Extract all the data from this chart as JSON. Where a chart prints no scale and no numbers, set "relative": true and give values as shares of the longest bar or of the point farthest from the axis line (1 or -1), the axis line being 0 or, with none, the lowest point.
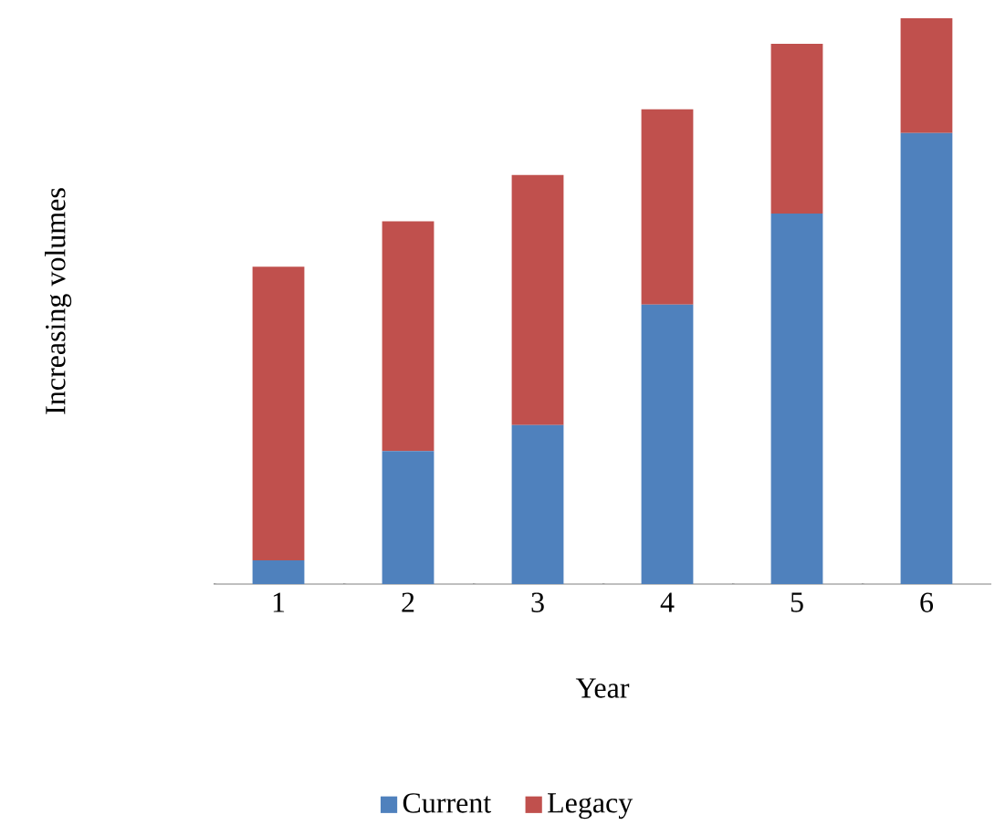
{
  "chart_data": {
    "type": "bar",
    "stacked": true,
    "relative": true,
    "legend": "bottom",
    "xlabel": "Year",
    "ylabel": "Increasing volumes",
    "categories": [
      "1",
      "2",
      "3",
      "4",
      "5",
      "6"
    ],
    "series": [
      {
        "name": "Current",
        "color": "#4f81bd",
        "values": [
          0.042,
          0.235,
          0.281,
          0.494,
          0.655,
          0.797
        ]
      },
      {
        "name": "Legacy",
        "color": "#c0504d",
        "values": [
          0.519,
          0.406,
          0.442,
          0.345,
          0.3,
          0.203
        ]
      }
    ]
  }
}
